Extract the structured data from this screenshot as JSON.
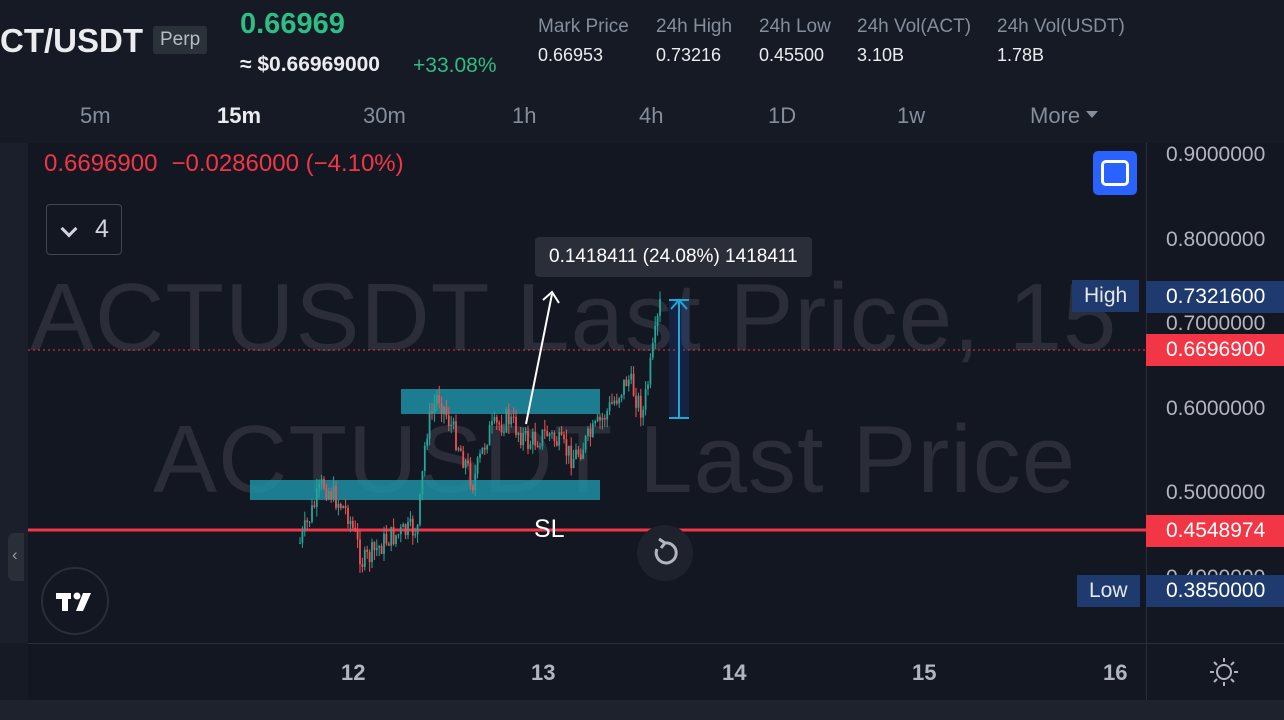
{
  "header": {
    "symbol": "CT/USDT",
    "contract_type": "Perp",
    "last_price": "0.66969",
    "usd_price": "≈ $0.66969000",
    "change_pct": "+33.08%",
    "stats": [
      {
        "label": "Mark Price",
        "value": "0.66953"
      },
      {
        "label": "24h High",
        "value": "0.73216"
      },
      {
        "label": "24h Low",
        "value": "0.45500"
      },
      {
        "label": "24h Vol(ACT)",
        "value": "3.10B"
      },
      {
        "label": "24h Vol(USDT)",
        "value": "1.78B"
      }
    ]
  },
  "timeframes": {
    "items": [
      "5m",
      "15m",
      "30m",
      "1h",
      "4h",
      "1D",
      "1w"
    ],
    "active": "15m",
    "more_label": "More"
  },
  "chart": {
    "legend_price": "0.6696900",
    "legend_change": "−0.0286000 (−4.10%)",
    "indicator_count": "4",
    "watermark_line1": "ACTUSDT Last Price, 15",
    "watermark_line2": "ACTUSDT Last Price",
    "measure_label": "0.1418411 (24.08%) 1418411",
    "sl_label": "SL",
    "price_ticks": [
      "0.9000000",
      "0.8000000",
      "0.7000000",
      "0.6000000",
      "0.5000000",
      "0.4000000"
    ],
    "high_label": "High",
    "high_value": "0.7321600",
    "last_value": "0.6696900",
    "sl_value": "0.4548974",
    "low_label": "Low",
    "low_value": "0.3850000",
    "time_ticks": [
      "12",
      "13",
      "14",
      "15",
      "16"
    ],
    "colors": {
      "up": "#26a69a",
      "down": "#ef5350",
      "zone": "#1f8fa3",
      "sl_line": "#f23645",
      "accent": "#2962ff"
    },
    "icons": [
      "fullscreen-icon",
      "replay-icon",
      "tradingview-logo-icon",
      "settings-sun-icon",
      "chevron-down-icon",
      "chevron-left-icon"
    ]
  }
}
